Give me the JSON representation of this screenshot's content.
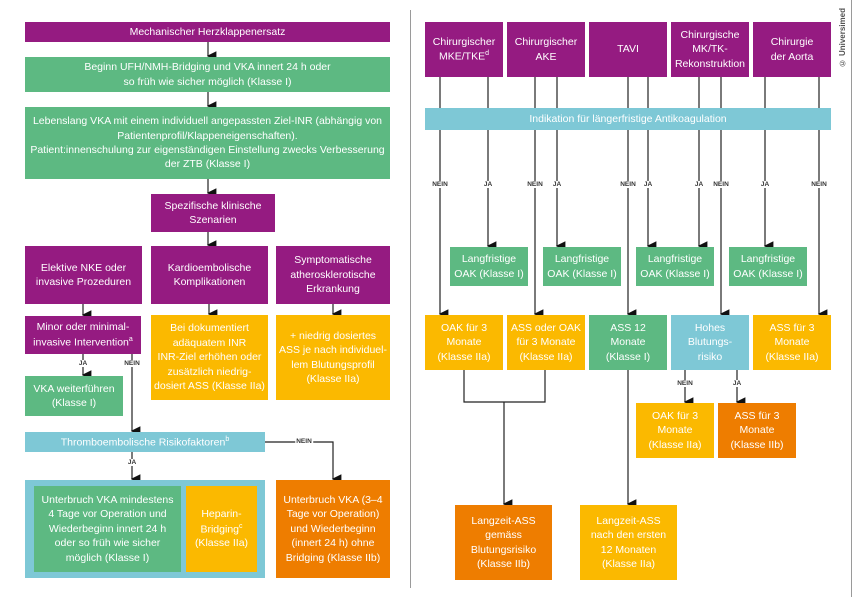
{
  "colors": {
    "purple": "#951b81",
    "green": "#5db982",
    "yellow": "#fbb900",
    "orange": "#ee7d00",
    "cyan": "#7ec8d6"
  },
  "copyright": "© Universimed",
  "left": {
    "title": "Mechanischer Herzklappenersatz",
    "step1": "Beginn UFH/NMH-Bridging und VKA innert 24 h oder\nso früh wie sicher möglich (Klasse I)",
    "step2": "Lebenslang VKA mit einem individuell angepassten Ziel-INR (abhängig von\nPatientenprofil/Klappeneigenschaften).\nPatient:innenschulung zur eigenständigen Einstellung zwecks Verbesserung\nder ZTB (Klasse I)",
    "scenarios": "Spezifische klinische\nSzenarien",
    "scenario_a": "Elektive NKE oder\ninvasive Prozeduren",
    "scenario_b": "Kardioembolische\nKomplikationen",
    "scenario_c": "Symptomatische\natherosklerotische\nErkrankung",
    "minor": "Minor oder minimal-\ninvasive Intervention",
    "minor_sup": "a",
    "kardio_action": "Bei dokumentiert\nadäquatem INR\nINR-Ziel erhöhen oder\nzusätzlich niedrig-\ndosiert ASS (Klasse IIa)",
    "athero_action": "+ niedrig  dosiertes\nASS je nach individuel-\nlem Blutungsprofil\n(Klasse IIa)",
    "vka_continue": "VKA weiterführen\n(Klasse I)",
    "thrombo": "Thromboembolische Risikofaktoren",
    "thrombo_sup": "b",
    "interrupt_bridging": "Unterbruch VKA mindestens\n4 Tage vor Operation und\nWiederbeginn innert 24 h\noder so früh wie sicher\nmöglich (Klasse I)",
    "heparin": "Heparin-\nBridging",
    "heparin_sup": "c",
    "heparin_class": "(Klasse IIa)",
    "interrupt_no_bridging": "Unterbruch VKA (3–4\nTage vor Operation)\nund Wiederbeginn\n(innert 24 h) ohne\nBridging (Klasse IIb)",
    "ja": "JA",
    "nein": "NEIN"
  },
  "right": {
    "procedures": [
      {
        "label": "Chirurgischer\nMKE/TKE",
        "sup": "d"
      },
      {
        "label": "Chirurgischer\nAKE",
        "sup": ""
      },
      {
        "label": "TAVI",
        "sup": ""
      },
      {
        "label": "Chirurgische\nMK/TK-\nRekonstruktion",
        "sup": ""
      },
      {
        "label": "Chirurgie\nder Aorta",
        "sup": ""
      }
    ],
    "indication": "Indikation für längerfristige Antikoagulation",
    "long_oak": "Langfristige\nOAK (Klasse I)",
    "row2": [
      "OAK für 3\nMonate\n(Klasse IIa)",
      "ASS oder OAK\nfür 3 Monate\n(Klasse IIa)",
      "ASS 12\nMonate\n(Klasse I)",
      "Hohes\nBlutungs-\nrisiko",
      "ASS für 3\nMonate\n(Klasse IIa)"
    ],
    "bleed_no": "OAK für 3\nMonate\n(Klasse IIa)",
    "bleed_yes": "ASS für 3\nMonate\n(Klasse IIb)",
    "longterm_ass_risk": "Langzeit-ASS\ngemäss\nBlutungsrisiko\n(Klasse IIb)",
    "longterm_ass_12": "Langzeit-ASS\nnach den ersten\n12 Monaten\n(Klasse IIa)",
    "ja": "JA",
    "nein": "NEIN"
  }
}
